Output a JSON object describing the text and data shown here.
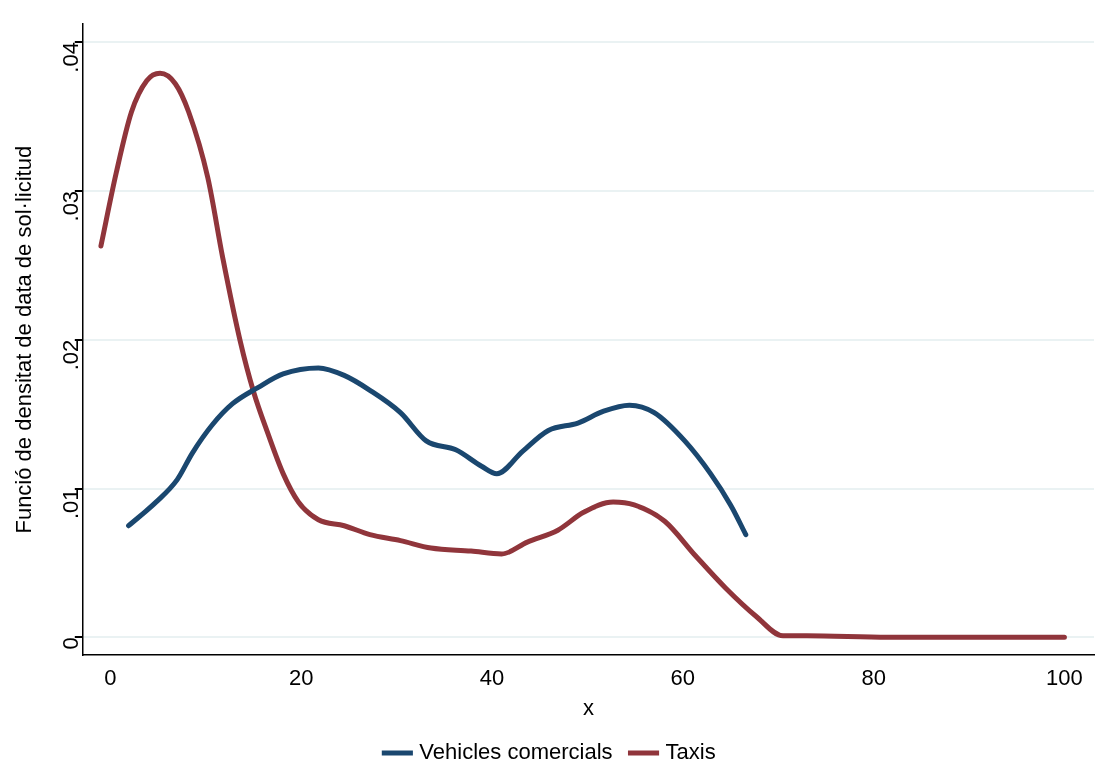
{
  "chart_data": {
    "type": "line",
    "xlabel": "x",
    "ylabel": "Funció de densitat de data de sol·licitud",
    "xlim": [
      -2.9,
      103.1
    ],
    "xticks": [
      0,
      20,
      40,
      60,
      80,
      100
    ],
    "ylim": [
      -0.0012,
      0.0412
    ],
    "yticks": [
      {
        "value": 0,
        "label": "0"
      },
      {
        "value": 0.01,
        "label": ".01"
      },
      {
        "value": 0.02,
        "label": ".02"
      },
      {
        "value": 0.03,
        "label": ".03"
      },
      {
        "value": 0.04,
        "label": ".04"
      }
    ],
    "grid": "y",
    "legend": "bottom",
    "marker": "none",
    "line_style": "solid",
    "series": [
      {
        "name": "Vehicles comercials",
        "color": "#1a476f",
        "x": [
          1.9,
          4.8,
          7,
          8.6,
          10.7,
          12.8,
          15.5,
          18.1,
          21.8,
          24.5,
          27.2,
          30.4,
          33.1,
          36.2,
          38.9,
          40.5,
          43.2,
          45.9,
          49,
          51.7,
          54.4,
          57,
          60.2,
          62.9,
          65,
          66.6
        ],
        "values": [
          0.0075,
          0.0091,
          0.0106,
          0.0124,
          0.0143,
          0.0157,
          0.0168,
          0.0177,
          0.0181,
          0.0176,
          0.0166,
          0.0151,
          0.0132,
          0.0126,
          0.0115,
          0.011,
          0.0125,
          0.0139,
          0.0144,
          0.0152,
          0.0156,
          0.0151,
          0.0132,
          0.011,
          0.0089,
          0.0069
        ]
      },
      {
        "name": "Taxis",
        "color": "#90353b",
        "x": [
          -1,
          0.6,
          2.2,
          3.8,
          5.2,
          6.8,
          8.2,
          10.2,
          11.8,
          13.6,
          15,
          16.5,
          18.1,
          19.7,
          21.8,
          24.5,
          27.2,
          30.4,
          33.6,
          37.8,
          41,
          43.7,
          46.9,
          49.6,
          52.7,
          54.9,
          58.1,
          61.3,
          64.5,
          67.7,
          70.5,
          73,
          81.5,
          92,
          100
        ],
        "values": [
          0.0263,
          0.0312,
          0.0353,
          0.0374,
          0.0379,
          0.0372,
          0.0353,
          0.0309,
          0.0254,
          0.0199,
          0.0165,
          0.0137,
          0.011,
          0.0091,
          0.0079,
          0.0075,
          0.0069,
          0.0065,
          0.006,
          0.0058,
          0.0056,
          0.0064,
          0.0072,
          0.0084,
          0.0091,
          0.0089,
          0.0078,
          0.0055,
          0.0033,
          0.0014,
          0.0001,
          0.0001,
          0,
          0,
          0
        ]
      }
    ]
  }
}
